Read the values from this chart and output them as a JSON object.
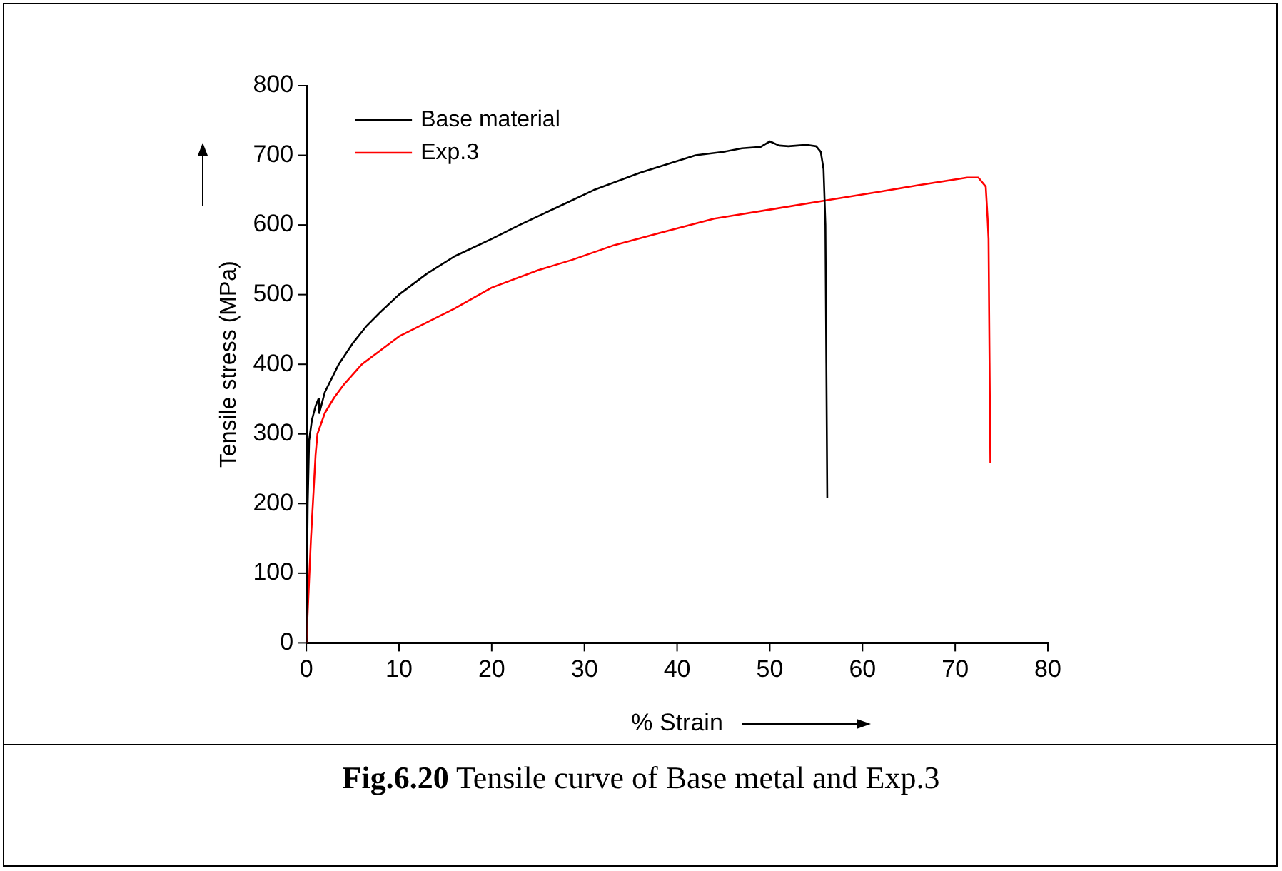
{
  "chart_data": {
    "type": "line",
    "title": "Fig.6.20 Tensile curve of Base metal and Exp.3",
    "xlabel": "% Strain",
    "ylabel": "Tensile stress (MPa)",
    "series": [
      {
        "name": "Base material",
        "color": "#000000",
        "x": [
          0,
          0.15,
          0.3,
          0.6,
          1,
          1.3,
          1.4,
          2,
          3.5,
          5,
          6.5,
          8,
          10,
          13,
          16,
          20,
          23,
          27,
          31,
          36,
          42,
          45,
          47,
          49,
          50,
          51,
          52,
          54,
          55,
          55.5,
          55.8,
          56,
          56.2
        ],
        "values": [
          0,
          200,
          290,
          320,
          340,
          350,
          330,
          360,
          400,
          430,
          455,
          475,
          500,
          530,
          555,
          580,
          600,
          625,
          650,
          675,
          700,
          705,
          710,
          712,
          720,
          714,
          713,
          715,
          713,
          705,
          680,
          600,
          208
        ]
      },
      {
        "name": "Exp.3",
        "color": "#ff0000",
        "x": [
          0,
          0.5,
          1,
          1.2,
          2,
          3,
          4,
          6,
          8,
          10,
          13,
          16,
          20,
          25,
          28.7,
          33,
          38,
          44,
          50,
          56.4,
          62,
          66,
          71.3,
          72.5,
          73.3,
          73.5,
          73.6,
          73.8
        ],
        "values": [
          0,
          150,
          270,
          300,
          330,
          352,
          370,
          400,
          420,
          440,
          460,
          480,
          510,
          535,
          550,
          570,
          588,
          609,
          622,
          636,
          648,
          657,
          668,
          668,
          655,
          609,
          580,
          258
        ]
      }
    ],
    "xlim": [
      0,
      80
    ],
    "xticks": [
      0,
      10,
      20,
      30,
      40,
      50,
      60,
      70,
      80
    ],
    "ylim": [
      0,
      800
    ],
    "yticks": [
      0,
      100,
      200,
      300,
      400,
      500,
      600,
      700,
      800
    ],
    "legend": "top left",
    "grid": false
  }
}
